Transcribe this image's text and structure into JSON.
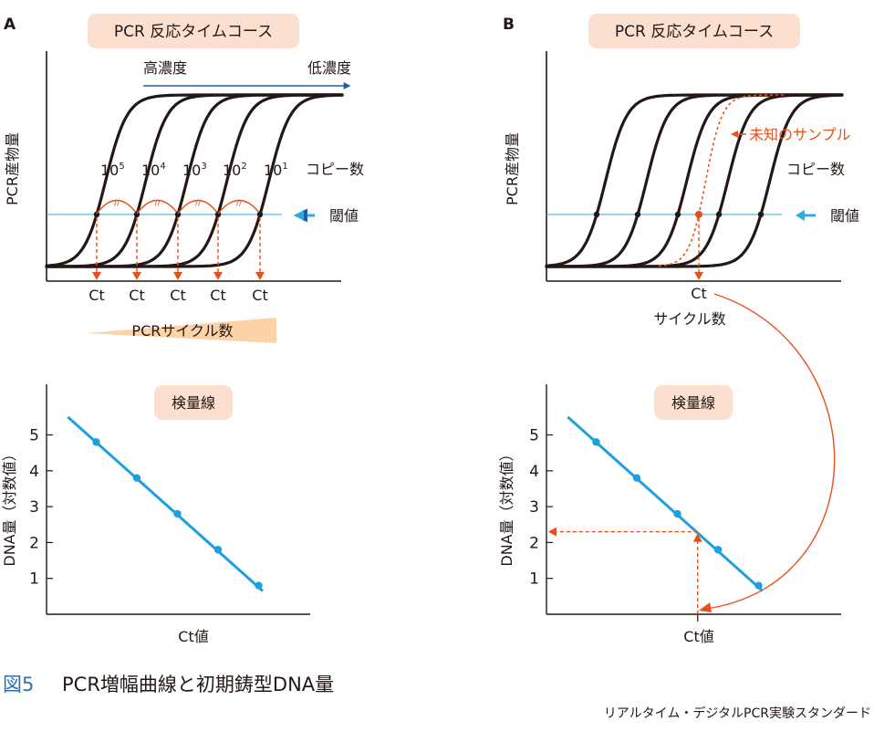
{
  "figure": {
    "caption_number": "図5",
    "caption_title": "PCR増幅曲線と初期鋳型DNA量",
    "credit": "リアルタイム・デジタルPCR実験スタンダード"
  },
  "panel_a": {
    "letter": "A",
    "title": "PCR 反応タイムコース",
    "y_label": "PCR産物量",
    "high_conc": "高濃度",
    "low_conc": "低濃度",
    "copy_labels": [
      {
        "base": "10",
        "exp": "5"
      },
      {
        "base": "10",
        "exp": "4"
      },
      {
        "base": "10",
        "exp": "3"
      },
      {
        "base": "10",
        "exp": "2"
      },
      {
        "base": "10",
        "exp": "1"
      }
    ],
    "copy_number_label": "コピー数",
    "threshold_label": "閾値",
    "ct_label": "Ct",
    "equal_mark": "//",
    "x_label": "PCRサイクル数",
    "calib_title": "検量線",
    "calib_y_label": "DNA量（対数値）",
    "calib_x_label": "Ct値"
  },
  "panel_b": {
    "letter": "B",
    "title": "PCR 反応タイムコース",
    "y_label": "PCR産物量",
    "unknown_sample_label": "未知のサンプル",
    "copy_number_label": "コピー数",
    "threshold_label": "閾値",
    "ct_label": "Ct",
    "x_label": "サイクル数",
    "calib_title": "検量線",
    "calib_y_label": "DNA量（対数値）",
    "calib_x_label": "Ct値"
  },
  "colors": {
    "curve": "#231815",
    "threshold": "#29abe2",
    "calibration": "#1ea0e0",
    "accent_orange": "#e8501a",
    "title_box": "#fbe0cf",
    "wedge": "#fbd3a6",
    "concentration_arrow": "#1f5fa8",
    "caption_blue": "#2f6fb5"
  },
  "chart_data": [
    {
      "name": "amplification-curves-A",
      "type": "line",
      "series_names": [
        "10^5",
        "10^4",
        "10^3",
        "10^2",
        "10^1"
      ],
      "ct_values": [
        1,
        2,
        3,
        4,
        5
      ],
      "ticks": "none"
    },
    {
      "name": "calibration-curve-A",
      "type": "scatter",
      "ylabel": "DNA量（対数値）",
      "xlabel": "Ct値",
      "yticks": [
        1,
        2,
        3,
        4,
        5
      ],
      "ylim": [
        0,
        6
      ],
      "points": [
        {
          "ct": 1,
          "log_dna": 4.8
        },
        {
          "ct": 2,
          "log_dna": 3.8
        },
        {
          "ct": 3,
          "log_dna": 2.8
        },
        {
          "ct": 4,
          "log_dna": 1.8
        },
        {
          "ct": 5,
          "log_dna": 0.8
        }
      ],
      "fit_line": {
        "ct_start": 0.3,
        "log_start": 5.5,
        "ct_end": 5.1,
        "log_end": 0.65
      }
    },
    {
      "name": "amplification-curves-B",
      "type": "line",
      "standard_ct_values": [
        1,
        2,
        3,
        4,
        5
      ],
      "unknown_ct": 3.5
    },
    {
      "name": "calibration-curve-B",
      "type": "scatter",
      "ylabel": "DNA量（対数値）",
      "xlabel": "Ct値",
      "yticks": [
        1,
        2,
        3,
        4,
        5
      ],
      "ylim": [
        0,
        6
      ],
      "points": [
        {
          "ct": 1,
          "log_dna": 4.8
        },
        {
          "ct": 2,
          "log_dna": 3.8
        },
        {
          "ct": 3,
          "log_dna": 2.8
        },
        {
          "ct": 4,
          "log_dna": 1.8
        },
        {
          "ct": 5,
          "log_dna": 0.8
        }
      ],
      "unknown": {
        "ct": 3.5,
        "log_dna": 2.3
      },
      "fit_line": {
        "ct_start": 0.3,
        "log_start": 5.5,
        "ct_end": 5.1,
        "log_end": 0.65
      }
    }
  ]
}
